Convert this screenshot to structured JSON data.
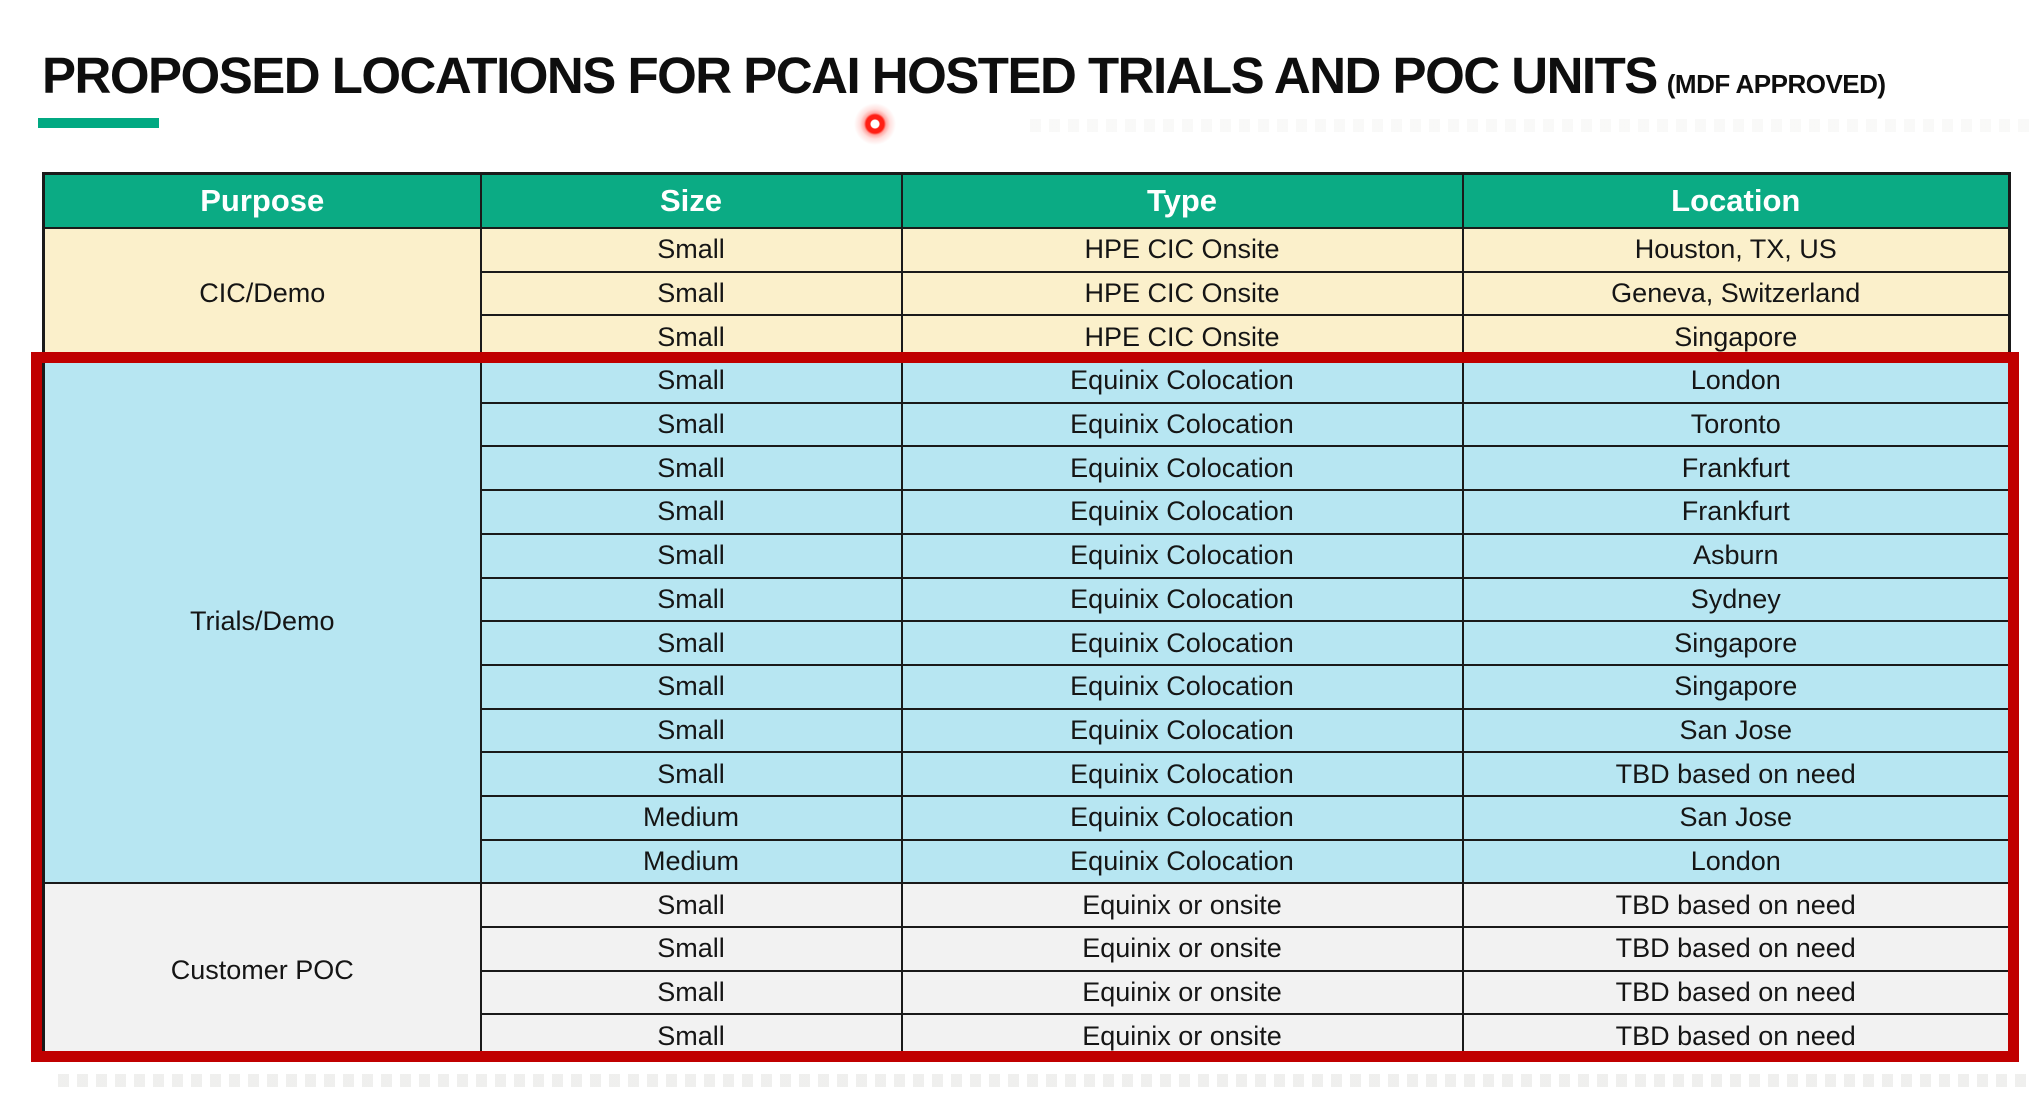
{
  "title": {
    "text": "PROPOSED LOCATIONS FOR PCAI HOSTED TRIALS AND POC UNITS",
    "suffix": "(MDF APPROVED)"
  },
  "table": {
    "headers": [
      "Purpose",
      "Size",
      "Type",
      "Location"
    ],
    "sections": [
      {
        "purpose": "CIC/Demo",
        "rows": [
          {
            "size": "Small",
            "type": "HPE CIC Onsite",
            "location": "Houston, TX, US"
          },
          {
            "size": "Small",
            "type": "HPE CIC Onsite",
            "location": "Geneva, Switzerland"
          },
          {
            "size": "Small",
            "type": "HPE CIC Onsite",
            "location": "Singapore"
          }
        ]
      },
      {
        "purpose": "Trials/Demo",
        "rows": [
          {
            "size": "Small",
            "type": "Equinix Colocation",
            "location": "London"
          },
          {
            "size": "Small",
            "type": "Equinix Colocation",
            "location": "Toronto"
          },
          {
            "size": "Small",
            "type": "Equinix Colocation",
            "location": "Frankfurt"
          },
          {
            "size": "Small",
            "type": "Equinix Colocation",
            "location": "Frankfurt"
          },
          {
            "size": "Small",
            "type": "Equinix Colocation",
            "location": "Asburn"
          },
          {
            "size": "Small",
            "type": "Equinix Colocation",
            "location": "Sydney"
          },
          {
            "size": "Small",
            "type": "Equinix Colocation",
            "location": "Singapore"
          },
          {
            "size": "Small",
            "type": "Equinix Colocation",
            "location": "Singapore"
          },
          {
            "size": "Small",
            "type": "Equinix Colocation",
            "location": "San Jose"
          },
          {
            "size": "Small",
            "type": "Equinix Colocation",
            "location": "TBD based on need"
          },
          {
            "size": "Medium",
            "type": "Equinix Colocation",
            "location": "San Jose"
          },
          {
            "size": "Medium",
            "type": "Equinix Colocation",
            "location": "London"
          }
        ]
      },
      {
        "purpose": "Customer POC",
        "rows": [
          {
            "size": "Small",
            "type": "Equinix or onsite",
            "location": "TBD based on need"
          },
          {
            "size": "Small",
            "type": "Equinix or onsite",
            "location": "TBD based on need"
          },
          {
            "size": "Small",
            "type": "Equinix or onsite",
            "location": "TBD based on need"
          },
          {
            "size": "Small",
            "type": "Equinix or onsite",
            "location": "TBD based on need"
          }
        ]
      }
    ]
  },
  "colors": {
    "page_bg": "#FFFFFF",
    "header_bg": "#0BAB84",
    "header_text": "#FFFFFF",
    "section_cic_bg": "#FBF0CB",
    "section_trials_bg": "#B7E6F2",
    "section_poc_bg": "#F2F2F2",
    "grid_line": "#1A1A1A",
    "text": "#151515",
    "accent_underline": "#01A982",
    "highlight_border": "#C00000",
    "laser_dot": "#FF1F14"
  }
}
